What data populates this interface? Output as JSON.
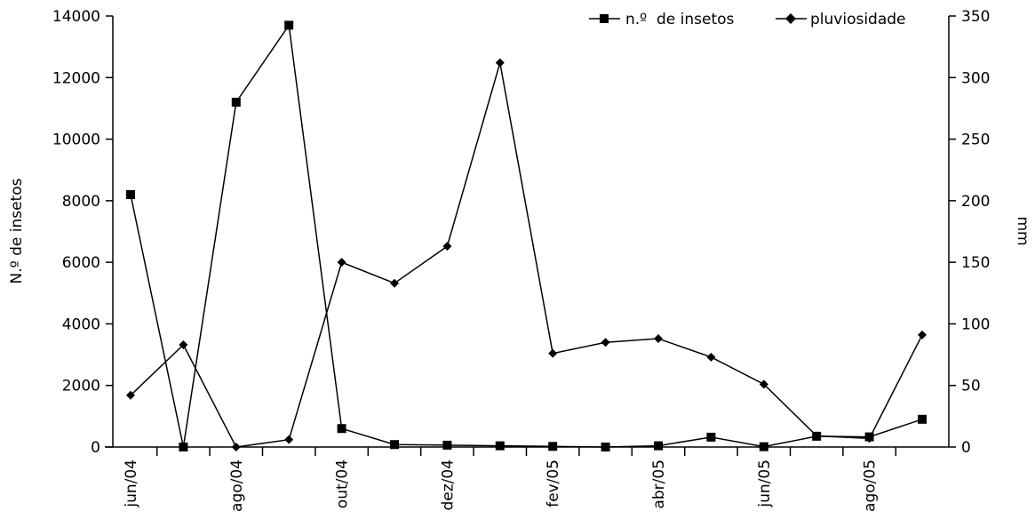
{
  "chart_data": {
    "type": "line",
    "x_categories": [
      "jun/04",
      "",
      "ago/04",
      "",
      "out/04",
      "",
      "dez/04",
      "",
      "fev/05",
      "",
      "abr/05",
      "",
      "jun/05",
      "",
      "ago/05",
      ""
    ],
    "series": [
      {
        "name": "n.º  de insetos",
        "axis": "left",
        "marker": "square",
        "values": [
          8200,
          0,
          11200,
          13700,
          600,
          80,
          60,
          40,
          20,
          0,
          40,
          320,
          10,
          350,
          330,
          900
        ]
      },
      {
        "name": "pluviosidade",
        "axis": "right",
        "marker": "diamond",
        "values": [
          42,
          83,
          0,
          6,
          150,
          133,
          163,
          312,
          76,
          85,
          88,
          73,
          51,
          9,
          7,
          91
        ]
      }
    ],
    "y_left": {
      "label": "N.º de insetos",
      "ylim": [
        0,
        14000
      ],
      "ticks": [
        "0",
        "2000",
        "4000",
        "6000",
        "8000",
        "10000",
        "12000",
        "14000"
      ]
    },
    "y_right": {
      "label": "mm",
      "ylim": [
        0,
        350
      ],
      "ticks": [
        "0",
        "50",
        "100",
        "150",
        "200",
        "250",
        "300",
        "350"
      ]
    },
    "legend_position": "top-right",
    "grid": false
  }
}
